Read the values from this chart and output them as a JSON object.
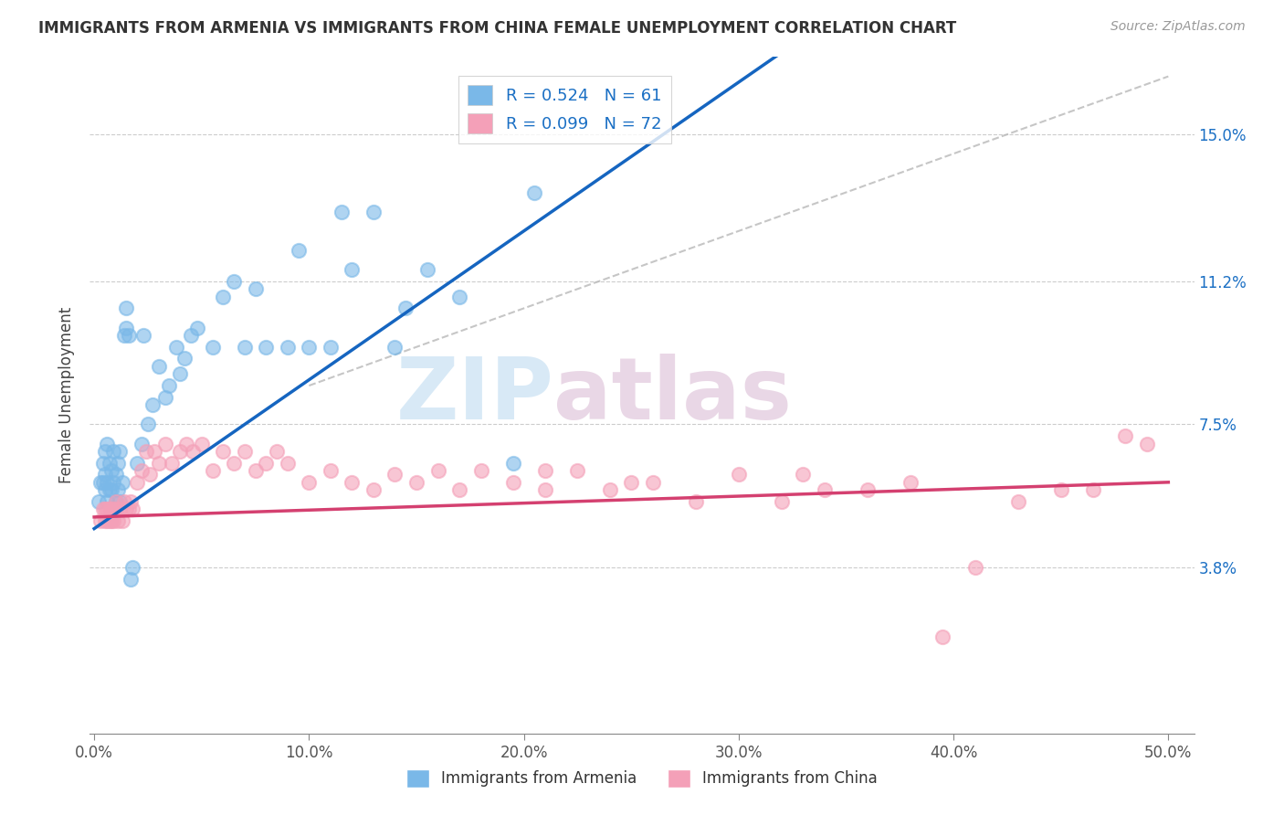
{
  "title": "IMMIGRANTS FROM ARMENIA VS IMMIGRANTS FROM CHINA FEMALE UNEMPLOYMENT CORRELATION CHART",
  "source": "Source: ZipAtlas.com",
  "ylabel": "Female Unemployment",
  "x_tick_labels": [
    "0.0%",
    "10.0%",
    "20.0%",
    "30.0%",
    "40.0%",
    "50.0%"
  ],
  "x_tick_vals": [
    0.0,
    0.1,
    0.2,
    0.3,
    0.4,
    0.5
  ],
  "y_tick_labels": [
    "3.8%",
    "7.5%",
    "11.2%",
    "15.0%"
  ],
  "y_tick_vals": [
    0.038,
    0.075,
    0.112,
    0.15
  ],
  "xlim": [
    -0.002,
    0.512
  ],
  "ylim": [
    -0.005,
    0.17
  ],
  "armenia_color": "#7ab8e8",
  "china_color": "#f4a0b8",
  "armenia_line_color": "#1565c0",
  "china_line_color": "#d44070",
  "ref_line_color": "#b8b8b8",
  "legend_entries": [
    "Immigrants from Armenia",
    "Immigrants from China"
  ],
  "armenia_x": [
    0.002,
    0.003,
    0.004,
    0.004,
    0.005,
    0.005,
    0.005,
    0.006,
    0.006,
    0.006,
    0.007,
    0.007,
    0.008,
    0.008,
    0.009,
    0.009,
    0.01,
    0.01,
    0.011,
    0.011,
    0.012,
    0.012,
    0.013,
    0.014,
    0.015,
    0.015,
    0.016,
    0.017,
    0.018,
    0.02,
    0.022,
    0.023,
    0.025,
    0.027,
    0.03,
    0.033,
    0.035,
    0.038,
    0.04,
    0.042,
    0.045,
    0.048,
    0.055,
    0.06,
    0.065,
    0.07,
    0.075,
    0.08,
    0.09,
    0.095,
    0.1,
    0.11,
    0.115,
    0.12,
    0.13,
    0.14,
    0.145,
    0.155,
    0.17,
    0.195,
    0.205
  ],
  "armenia_y": [
    0.055,
    0.06,
    0.06,
    0.065,
    0.058,
    0.062,
    0.068,
    0.055,
    0.06,
    0.07,
    0.058,
    0.065,
    0.058,
    0.063,
    0.06,
    0.068,
    0.055,
    0.062,
    0.058,
    0.065,
    0.055,
    0.068,
    0.06,
    0.098,
    0.1,
    0.105,
    0.098,
    0.035,
    0.038,
    0.065,
    0.07,
    0.098,
    0.075,
    0.08,
    0.09,
    0.082,
    0.085,
    0.095,
    0.088,
    0.092,
    0.098,
    0.1,
    0.095,
    0.108,
    0.112,
    0.095,
    0.11,
    0.095,
    0.095,
    0.12,
    0.095,
    0.095,
    0.13,
    0.115,
    0.13,
    0.095,
    0.105,
    0.115,
    0.108,
    0.065,
    0.135
  ],
  "china_x": [
    0.003,
    0.004,
    0.005,
    0.005,
    0.006,
    0.006,
    0.007,
    0.007,
    0.008,
    0.008,
    0.009,
    0.009,
    0.01,
    0.01,
    0.011,
    0.012,
    0.013,
    0.014,
    0.015,
    0.016,
    0.017,
    0.018,
    0.02,
    0.022,
    0.024,
    0.026,
    0.028,
    0.03,
    0.033,
    0.036,
    0.04,
    0.043,
    0.046,
    0.05,
    0.055,
    0.06,
    0.065,
    0.07,
    0.075,
    0.08,
    0.085,
    0.09,
    0.1,
    0.11,
    0.12,
    0.13,
    0.14,
    0.15,
    0.16,
    0.17,
    0.18,
    0.195,
    0.21,
    0.225,
    0.24,
    0.26,
    0.28,
    0.3,
    0.32,
    0.34,
    0.36,
    0.38,
    0.395,
    0.41,
    0.43,
    0.45,
    0.465,
    0.48,
    0.49,
    0.21,
    0.25,
    0.33
  ],
  "china_y": [
    0.05,
    0.053,
    0.05,
    0.053,
    0.05,
    0.053,
    0.05,
    0.053,
    0.05,
    0.053,
    0.053,
    0.05,
    0.053,
    0.055,
    0.05,
    0.053,
    0.05,
    0.055,
    0.053,
    0.053,
    0.055,
    0.053,
    0.06,
    0.063,
    0.068,
    0.062,
    0.068,
    0.065,
    0.07,
    0.065,
    0.068,
    0.07,
    0.068,
    0.07,
    0.063,
    0.068,
    0.065,
    0.068,
    0.063,
    0.065,
    0.068,
    0.065,
    0.06,
    0.063,
    0.06,
    0.058,
    0.062,
    0.06,
    0.063,
    0.058,
    0.063,
    0.06,
    0.058,
    0.063,
    0.058,
    0.06,
    0.055,
    0.062,
    0.055,
    0.058,
    0.058,
    0.06,
    0.02,
    0.038,
    0.055,
    0.058,
    0.058,
    0.072,
    0.07,
    0.063,
    0.06,
    0.062
  ],
  "watermark_zip": "ZIP",
  "watermark_atlas": "atlas"
}
